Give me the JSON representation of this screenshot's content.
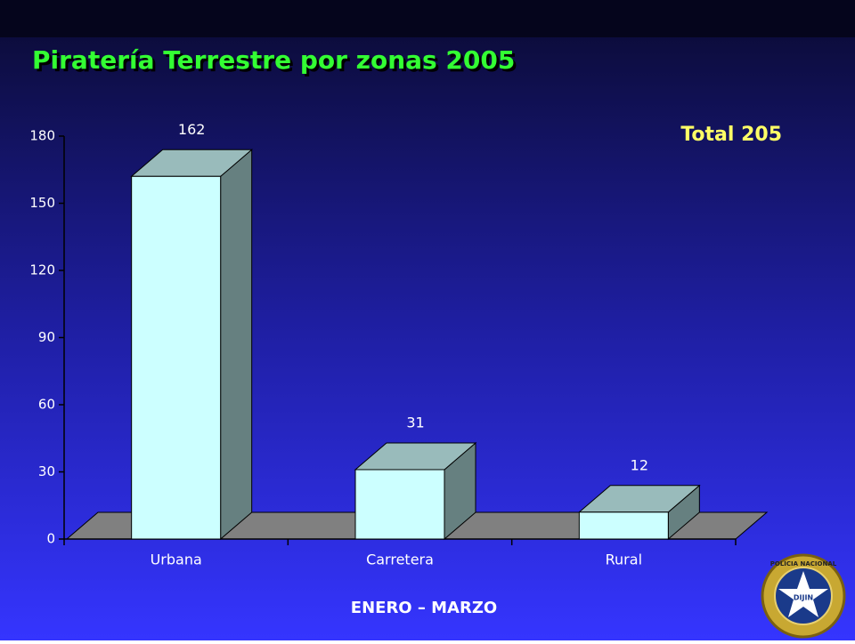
{
  "chart_data": {
    "type": "bar3d",
    "title": "Piratería Terrestre por zonas 2005",
    "annotation": "Total 205",
    "footer": "ENERO – MARZO",
    "categories": [
      "Urbana",
      "Carretera",
      "Rural"
    ],
    "values": [
      162,
      31,
      12
    ],
    "colors": {
      "front": "#ccffff",
      "top": "#99bbbb",
      "side": "#668080",
      "floor": "#808080"
    },
    "ylim": [
      0,
      180
    ],
    "yticks": [
      0,
      30,
      60,
      90,
      120,
      150,
      180
    ],
    "grid": false
  },
  "logo": {
    "ring_text": "POLICIA NACIONAL",
    "center_text": "DIJIN"
  }
}
